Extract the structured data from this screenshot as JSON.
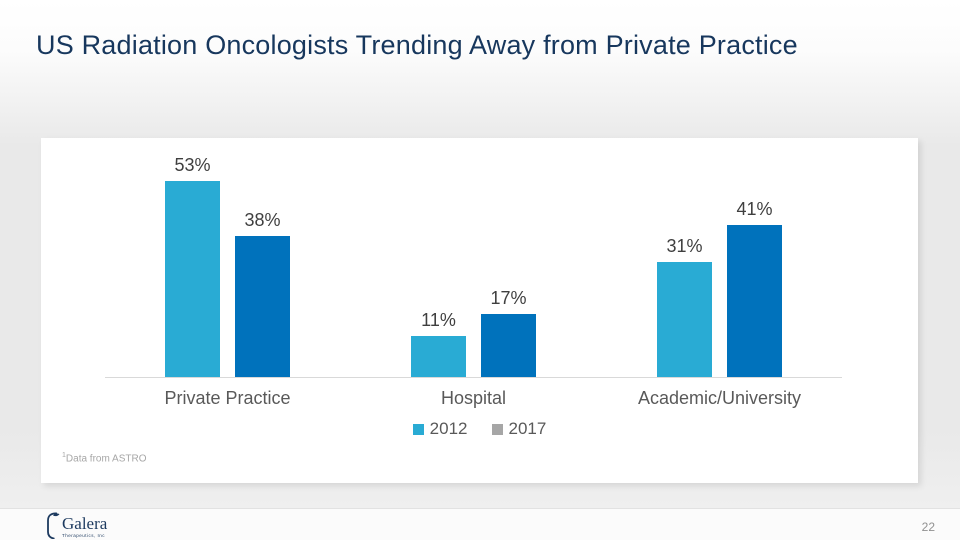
{
  "slide": {
    "title": "US Radiation Oncologists Trending Away from Private Practice",
    "footnote_superscript": "1",
    "footnote": "Data from ASTRO",
    "page_number": "22",
    "logo": {
      "name": "Galera",
      "subtext": "Therapeutics, Inc"
    }
  },
  "chart_data": {
    "type": "bar",
    "categories": [
      "Private Practice",
      "Hospital",
      "Academic/University"
    ],
    "series": [
      {
        "name": "2012",
        "values": [
          53,
          11,
          31
        ],
        "color": "#29abd4",
        "legend_color": "#29abd4"
      },
      {
        "name": "2017",
        "values": [
          38,
          17,
          41
        ],
        "color": "#0072bc",
        "legend_color": "#a6a6a6"
      }
    ],
    "value_suffix": "%",
    "title": "",
    "xlabel": "",
    "ylabel": "",
    "ylim": [
      0,
      60
    ],
    "grid": false,
    "legend_position": "bottom"
  },
  "colors": {
    "title_text": "#17375d",
    "data_label": "#3f3f3f",
    "category_label": "#595959",
    "axis_line": "#d9d9d9",
    "footnote_text": "#a6a6a6",
    "card_background": "#ffffff",
    "slide_background": "#e9e9e9",
    "logo_navy": "#1d3a5f"
  }
}
